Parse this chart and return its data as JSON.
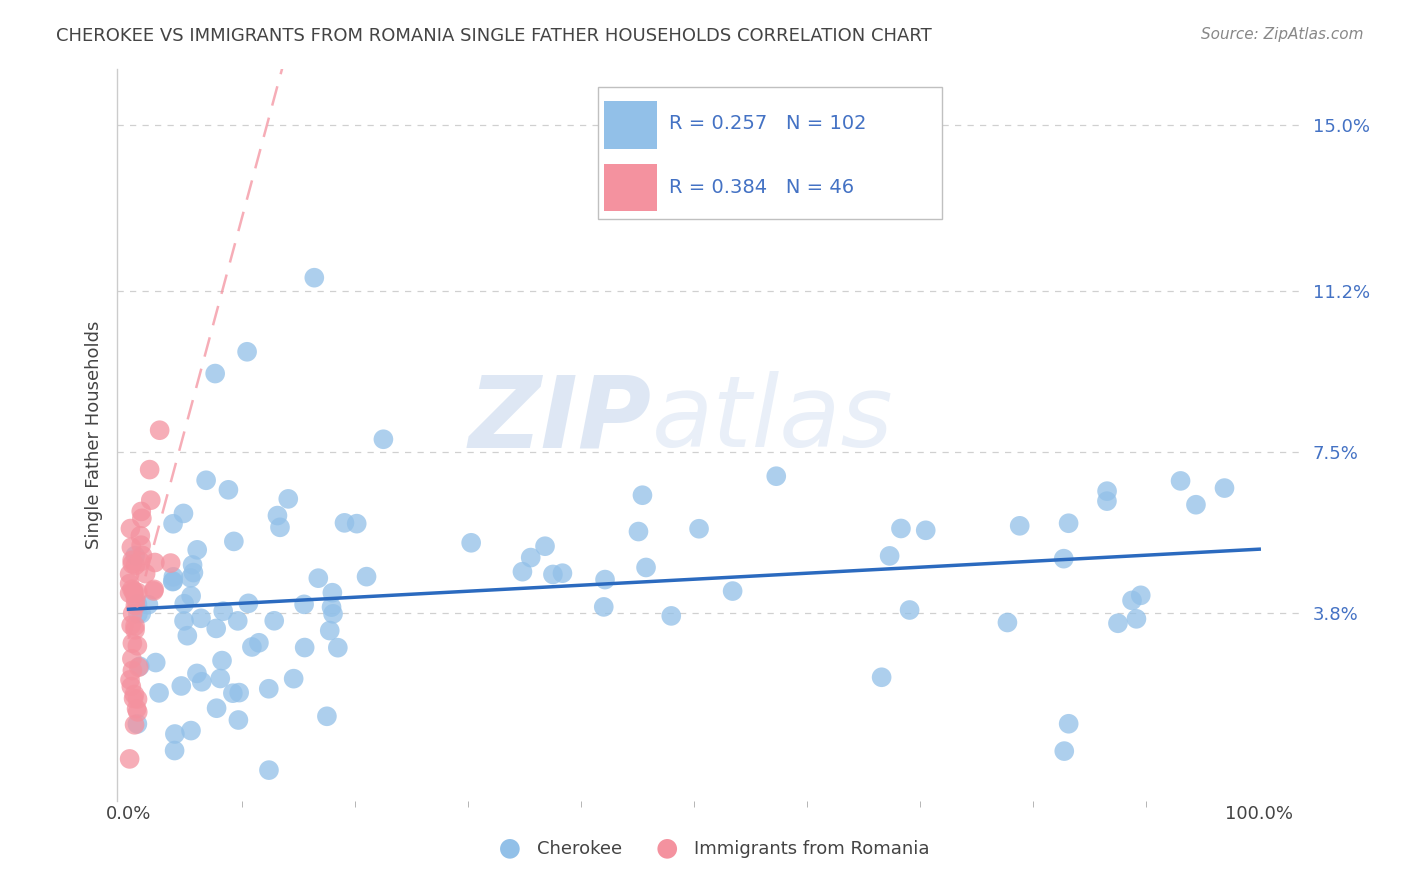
{
  "title": "CHEROKEE VS IMMIGRANTS FROM ROMANIA SINGLE FATHER HOUSEHOLDS CORRELATION CHART",
  "source": "Source: ZipAtlas.com",
  "ylabel": "Single Father Households",
  "ytick_vals": [
    0.0,
    0.038,
    0.075,
    0.112,
    0.15
  ],
  "ytick_labels": [
    "",
    "3.8%",
    "7.5%",
    "11.2%",
    "15.0%"
  ],
  "ylim": [
    -0.005,
    0.163
  ],
  "xlim": [
    -0.01,
    1.04
  ],
  "cherokee_R": 0.257,
  "cherokee_N": 102,
  "romania_R": 0.384,
  "romania_N": 46,
  "cherokee_color": "#92c0e8",
  "romania_color": "#f4929f",
  "cherokee_line_color": "#2b6abf",
  "romania_line_color": "#f4929f",
  "legend_label_1": "Cherokee",
  "legend_label_2": "Immigrants from Romania",
  "background_color": "#ffffff",
  "title_color": "#444444",
  "source_color": "#888888",
  "ytick_color": "#4472c4",
  "xtick_color": "#444444",
  "grid_color": "#d0d0d0",
  "spine_color": "#cccccc",
  "watermark_zip_color": "#c8d8ee",
  "watermark_atlas_color": "#c8d8ee"
}
